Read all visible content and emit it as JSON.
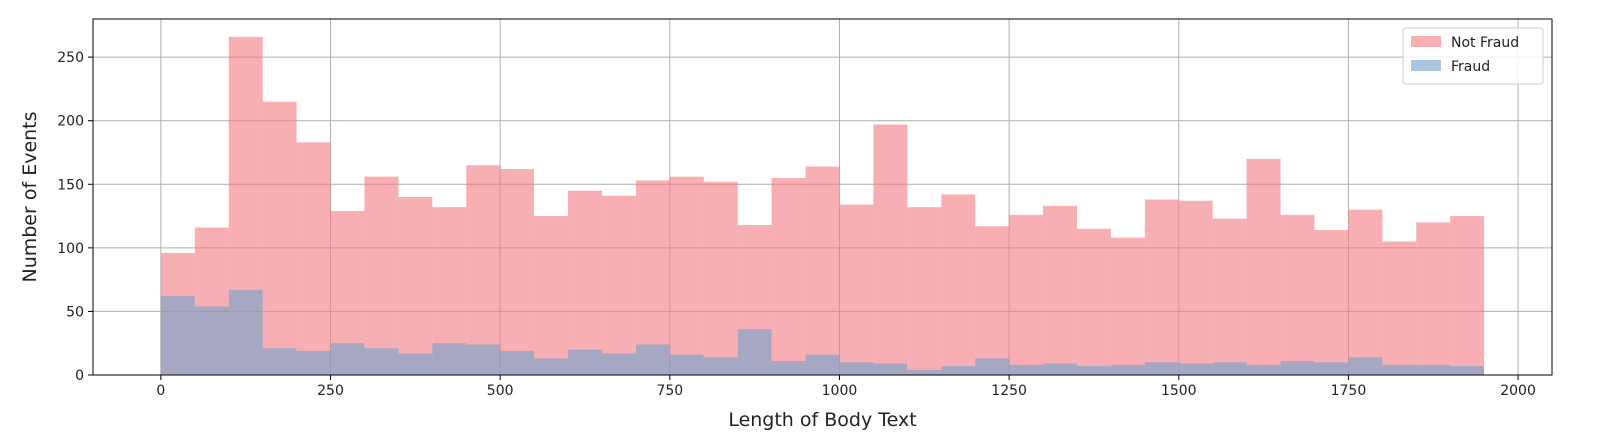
{
  "chart_data": {
    "type": "bar",
    "subtype": "overlaid-histogram",
    "title": "",
    "xlabel": "Length of Body Text",
    "ylabel": "Number of Events",
    "xlim": [
      -100,
      2050
    ],
    "ylim": [
      0,
      280
    ],
    "x_ticks": [
      0,
      250,
      500,
      750,
      1000,
      1250,
      1500,
      1750,
      2000
    ],
    "y_ticks": [
      0,
      50,
      100,
      150,
      200,
      250
    ],
    "grid": true,
    "legend_position": "top-right",
    "bin_edges": [
      0,
      50,
      100,
      150,
      200,
      250,
      300,
      350,
      400,
      450,
      500,
      550,
      600,
      650,
      700,
      750,
      800,
      850,
      900,
      950,
      1000,
      1050,
      1100,
      1150,
      1200,
      1250,
      1300,
      1350,
      1400,
      1450,
      1500,
      1550,
      1600,
      1650,
      1700,
      1750,
      1800,
      1850,
      1900,
      1950
    ],
    "series": [
      {
        "name": "Not Fraud",
        "color": "#f47a80",
        "alpha": 0.6,
        "values": [
          96,
          116,
          266,
          215,
          183,
          129,
          156,
          140,
          132,
          165,
          162,
          125,
          145,
          141,
          153,
          156,
          152,
          118,
          155,
          164,
          134,
          197,
          132,
          142,
          117,
          126,
          133,
          115,
          108,
          138,
          137,
          123,
          170,
          126,
          114,
          130,
          105,
          120,
          125
        ]
      },
      {
        "name": "Fraud",
        "color": "#6fa1cc",
        "alpha": 0.6,
        "values": [
          62,
          54,
          67,
          21,
          19,
          25,
          21,
          17,
          25,
          24,
          19,
          13,
          20,
          17,
          24,
          16,
          14,
          36,
          11,
          16,
          10,
          9,
          4,
          7,
          13,
          8,
          9,
          7,
          8,
          10,
          9,
          10,
          8,
          11,
          10,
          14,
          8,
          8,
          7
        ]
      }
    ]
  }
}
